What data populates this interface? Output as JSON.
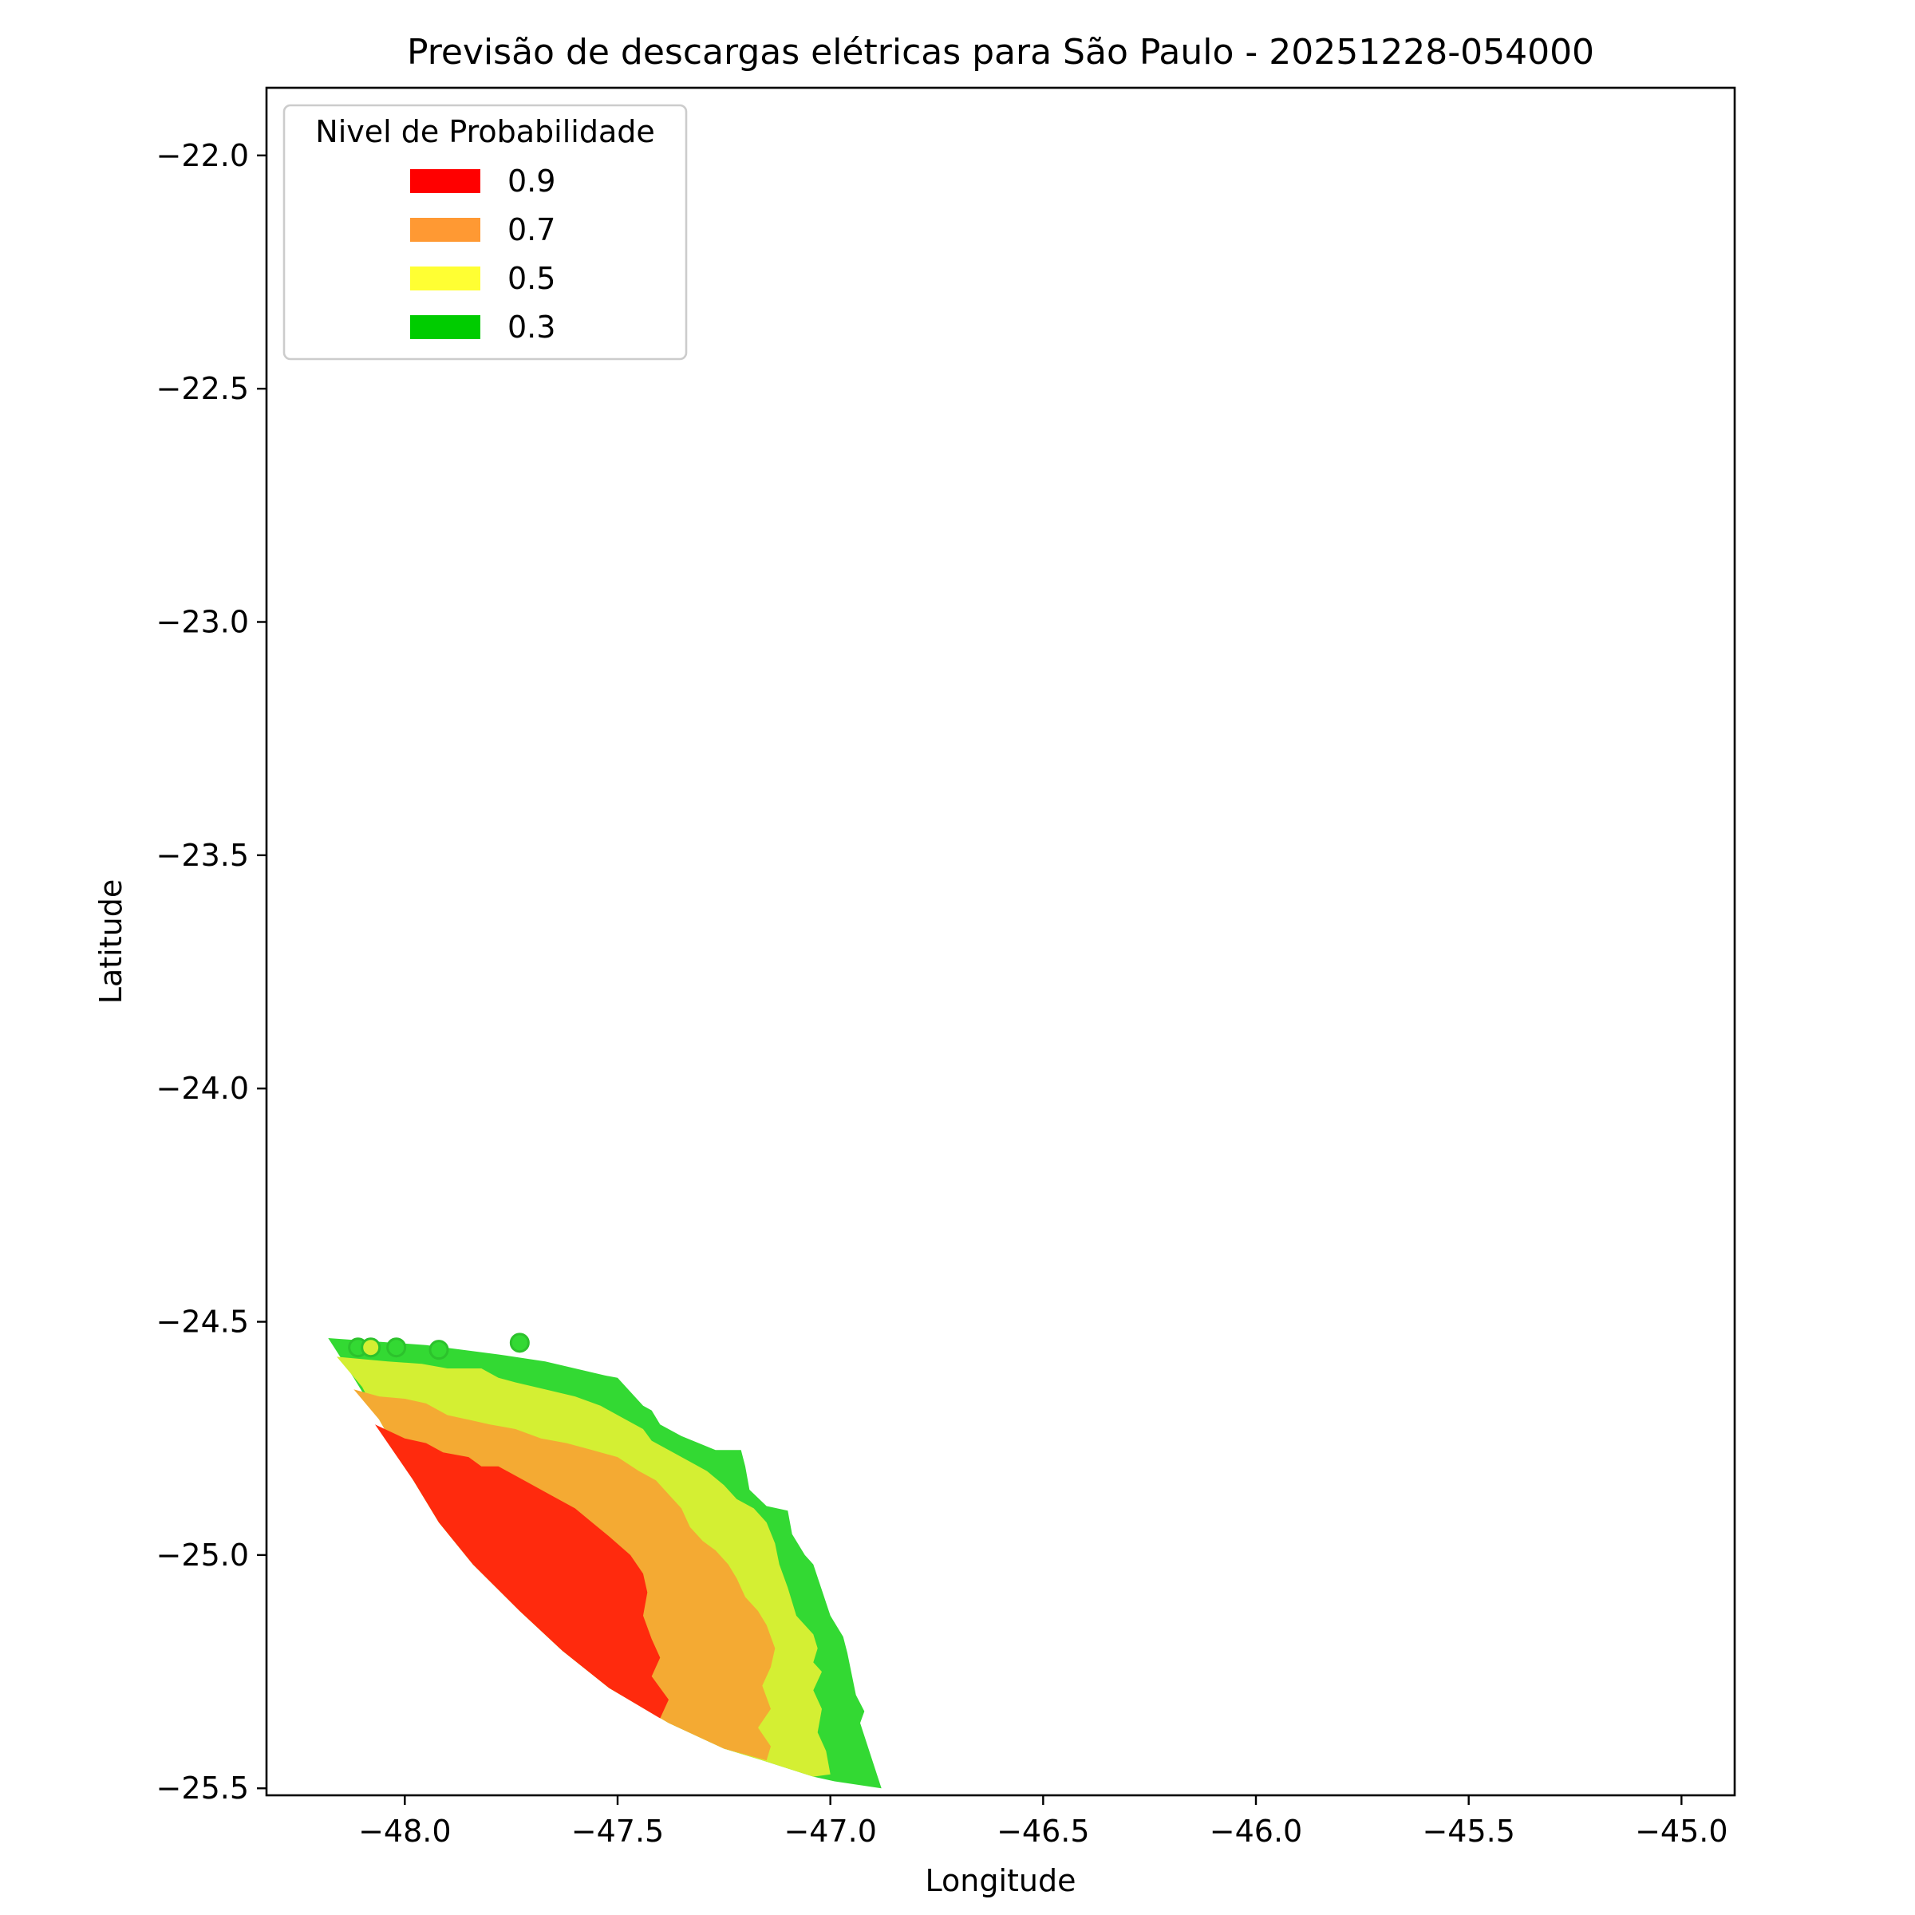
{
  "chart_data": {
    "type": "contour",
    "title": "Previsão de descargas elétricas para São Paulo - 20251228-054000",
    "xlabel": "Longitude",
    "ylabel": "Latitude",
    "xlim": [
      -48.325,
      -44.875
    ],
    "ylim": [
      -25.515,
      -21.855
    ],
    "xticks": [
      -48.0,
      -47.5,
      -47.0,
      -46.5,
      -46.0,
      -45.5,
      -45.0
    ],
    "xtick_labels": [
      "−48.0",
      "−47.5",
      "−47.0",
      "−46.5",
      "−46.0",
      "−45.5",
      "−45.0"
    ],
    "yticks": [
      -22.0,
      -22.5,
      -23.0,
      -23.5,
      -24.0,
      -24.5,
      -25.0,
      -25.5
    ],
    "ytick_labels": [
      "−22.0",
      "−22.5",
      "−23.0",
      "−23.5",
      "−24.0",
      "−24.5",
      "−25.0",
      "−25.5"
    ],
    "grid": false,
    "legend": {
      "title": "Nivel de Probabilidade",
      "placement": "upper-left",
      "entries": [
        {
          "label": "0.9",
          "color": "#ff0000"
        },
        {
          "label": "0.7",
          "color": "#ff9933"
        },
        {
          "label": "0.5",
          "color": "#ffff33"
        },
        {
          "label": "0.3",
          "color": "#00cc00"
        }
      ]
    },
    "series": [
      {
        "level": 0.3,
        "fill": "#33d933",
        "polygon": [
          [
            -48.18,
            -24.535
          ],
          [
            -47.95,
            -24.55
          ],
          [
            -47.78,
            -24.57
          ],
          [
            -47.67,
            -24.585
          ],
          [
            -47.53,
            -24.615
          ],
          [
            -47.5,
            -24.62
          ],
          [
            -47.44,
            -24.68
          ],
          [
            -47.42,
            -24.69
          ],
          [
            -47.4,
            -24.72
          ],
          [
            -47.35,
            -24.745
          ],
          [
            -47.27,
            -24.775
          ],
          [
            -47.21,
            -24.775
          ],
          [
            -47.2,
            -24.81
          ],
          [
            -47.19,
            -24.86
          ],
          [
            -47.15,
            -24.895
          ],
          [
            -47.1,
            -24.905
          ],
          [
            -47.09,
            -24.955
          ],
          [
            -47.06,
            -25.0
          ],
          [
            -47.04,
            -25.02
          ],
          [
            -47.0,
            -25.13
          ],
          [
            -46.97,
            -25.175
          ],
          [
            -46.96,
            -25.21
          ],
          [
            -46.94,
            -25.3
          ],
          [
            -46.92,
            -25.335
          ],
          [
            -46.93,
            -25.36
          ],
          [
            -46.88,
            -25.5
          ],
          [
            -46.99,
            -25.485
          ],
          [
            -47.04,
            -25.475
          ],
          [
            -47.16,
            -25.44
          ],
          [
            -47.25,
            -25.415
          ],
          [
            -47.38,
            -25.36
          ],
          [
            -47.52,
            -25.285
          ],
          [
            -47.63,
            -25.205
          ],
          [
            -47.73,
            -25.12
          ],
          [
            -47.84,
            -25.02
          ],
          [
            -47.92,
            -24.93
          ],
          [
            -47.98,
            -24.84
          ],
          [
            -48.06,
            -24.71
          ],
          [
            -48.12,
            -24.62
          ]
        ]
      },
      {
        "level": 0.5,
        "fill": "#d4ef33",
        "polygon": [
          [
            -48.16,
            -24.575
          ],
          [
            -48.04,
            -24.585
          ],
          [
            -47.96,
            -24.59
          ],
          [
            -47.9,
            -24.6
          ],
          [
            -47.82,
            -24.6
          ],
          [
            -47.78,
            -24.62
          ],
          [
            -47.74,
            -24.63
          ],
          [
            -47.67,
            -24.645
          ],
          [
            -47.6,
            -24.66
          ],
          [
            -47.54,
            -24.68
          ],
          [
            -47.5,
            -24.7
          ],
          [
            -47.44,
            -24.73
          ],
          [
            -47.42,
            -24.755
          ],
          [
            -47.38,
            -24.775
          ],
          [
            -47.33,
            -24.8
          ],
          [
            -47.29,
            -24.82
          ],
          [
            -47.25,
            -24.85
          ],
          [
            -47.22,
            -24.88
          ],
          [
            -47.18,
            -24.9
          ],
          [
            -47.15,
            -24.93
          ],
          [
            -47.13,
            -24.975
          ],
          [
            -47.12,
            -25.02
          ],
          [
            -47.1,
            -25.07
          ],
          [
            -47.08,
            -25.13
          ],
          [
            -47.04,
            -25.17
          ],
          [
            -47.03,
            -25.2
          ],
          [
            -47.04,
            -25.23
          ],
          [
            -47.02,
            -25.25
          ],
          [
            -47.04,
            -25.29
          ],
          [
            -47.02,
            -25.33
          ],
          [
            -47.03,
            -25.38
          ],
          [
            -47.01,
            -25.42
          ],
          [
            -47.0,
            -25.47
          ],
          [
            -47.04,
            -25.475
          ],
          [
            -47.16,
            -25.44
          ],
          [
            -47.25,
            -25.415
          ],
          [
            -47.38,
            -25.36
          ],
          [
            -47.52,
            -25.285
          ],
          [
            -47.63,
            -25.205
          ],
          [
            -47.73,
            -25.12
          ],
          [
            -47.84,
            -25.02
          ],
          [
            -47.92,
            -24.93
          ],
          [
            -47.98,
            -24.84
          ],
          [
            -48.06,
            -24.71
          ],
          [
            -48.1,
            -24.64
          ]
        ]
      },
      {
        "level": 0.7,
        "fill": "#f4aa33",
        "polygon": [
          [
            -48.12,
            -24.645
          ],
          [
            -48.06,
            -24.66
          ],
          [
            -48.0,
            -24.665
          ],
          [
            -47.95,
            -24.675
          ],
          [
            -47.9,
            -24.7
          ],
          [
            -47.85,
            -24.71
          ],
          [
            -47.8,
            -24.72
          ],
          [
            -47.74,
            -24.73
          ],
          [
            -47.68,
            -24.75
          ],
          [
            -47.62,
            -24.76
          ],
          [
            -47.56,
            -24.775
          ],
          [
            -47.5,
            -24.79
          ],
          [
            -47.45,
            -24.82
          ],
          [
            -47.41,
            -24.84
          ],
          [
            -47.38,
            -24.87
          ],
          [
            -47.35,
            -24.9
          ],
          [
            -47.33,
            -24.94
          ],
          [
            -47.3,
            -24.97
          ],
          [
            -47.27,
            -24.99
          ],
          [
            -47.24,
            -25.02
          ],
          [
            -47.22,
            -25.05
          ],
          [
            -47.2,
            -25.09
          ],
          [
            -47.17,
            -25.12
          ],
          [
            -47.15,
            -25.15
          ],
          [
            -47.13,
            -25.2
          ],
          [
            -47.14,
            -25.24
          ],
          [
            -47.16,
            -25.28
          ],
          [
            -47.14,
            -25.33
          ],
          [
            -47.17,
            -25.37
          ],
          [
            -47.14,
            -25.41
          ],
          [
            -47.15,
            -25.44
          ],
          [
            -47.25,
            -25.415
          ],
          [
            -47.38,
            -25.36
          ],
          [
            -47.52,
            -25.285
          ],
          [
            -47.63,
            -25.205
          ],
          [
            -47.73,
            -25.12
          ],
          [
            -47.84,
            -25.02
          ],
          [
            -47.92,
            -24.93
          ],
          [
            -47.98,
            -24.84
          ],
          [
            -48.06,
            -24.71
          ]
        ]
      },
      {
        "level": 0.9,
        "fill": "#ff2a0d",
        "polygon": [
          [
            -48.07,
            -24.72
          ],
          [
            -48.0,
            -24.75
          ],
          [
            -47.95,
            -24.76
          ],
          [
            -47.91,
            -24.78
          ],
          [
            -47.85,
            -24.79
          ],
          [
            -47.82,
            -24.81
          ],
          [
            -47.78,
            -24.81
          ],
          [
            -47.72,
            -24.84
          ],
          [
            -47.66,
            -24.87
          ],
          [
            -47.6,
            -24.9
          ],
          [
            -47.56,
            -24.93
          ],
          [
            -47.52,
            -24.96
          ],
          [
            -47.47,
            -25.0
          ],
          [
            -47.44,
            -25.04
          ],
          [
            -47.43,
            -25.08
          ],
          [
            -47.44,
            -25.13
          ],
          [
            -47.42,
            -25.18
          ],
          [
            -47.4,
            -25.22
          ],
          [
            -47.42,
            -25.26
          ],
          [
            -47.38,
            -25.31
          ],
          [
            -47.4,
            -25.35
          ],
          [
            -47.52,
            -25.285
          ],
          [
            -47.63,
            -25.205
          ],
          [
            -47.73,
            -25.12
          ],
          [
            -47.84,
            -25.02
          ],
          [
            -47.92,
            -24.93
          ],
          [
            -47.98,
            -24.84
          ],
          [
            -48.04,
            -24.76
          ]
        ]
      }
    ],
    "points": [
      {
        "lon": -48.11,
        "lat": -24.555,
        "level": 0.3
      },
      {
        "lon": -48.08,
        "lat": -24.555,
        "level": 0.5
      },
      {
        "lon": -48.02,
        "lat": -24.555,
        "level": 0.3
      },
      {
        "lon": -47.92,
        "lat": -24.56,
        "level": 0.3
      },
      {
        "lon": -47.73,
        "lat": -24.545,
        "level": 0.3
      }
    ]
  }
}
